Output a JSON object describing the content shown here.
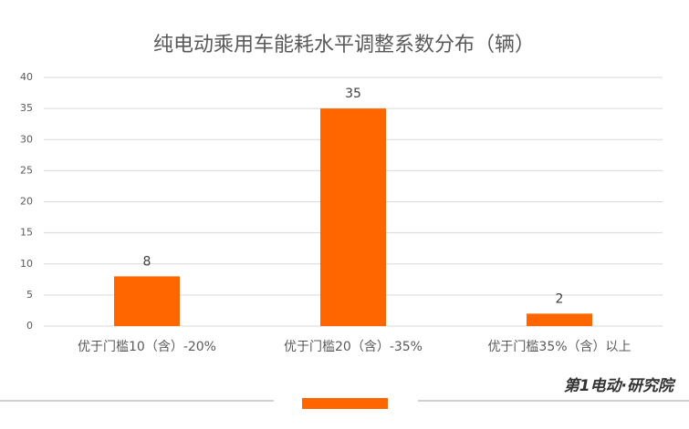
{
  "chart_data": {
    "type": "bar",
    "title": "纯电动乘用车能耗水平调整系数分布（辆）",
    "categories": [
      "优于门槛10（含）-20%",
      "优于门槛20（含）-35%",
      "优于门槛35%（含）以上"
    ],
    "values": [
      8,
      35,
      2
    ],
    "color": "#ff6600",
    "ylim": [
      0,
      40
    ],
    "yticks": [
      0,
      5,
      10,
      15,
      20,
      25,
      30,
      35,
      40
    ],
    "grid": true,
    "watermark": "第1电动·研究院"
  }
}
